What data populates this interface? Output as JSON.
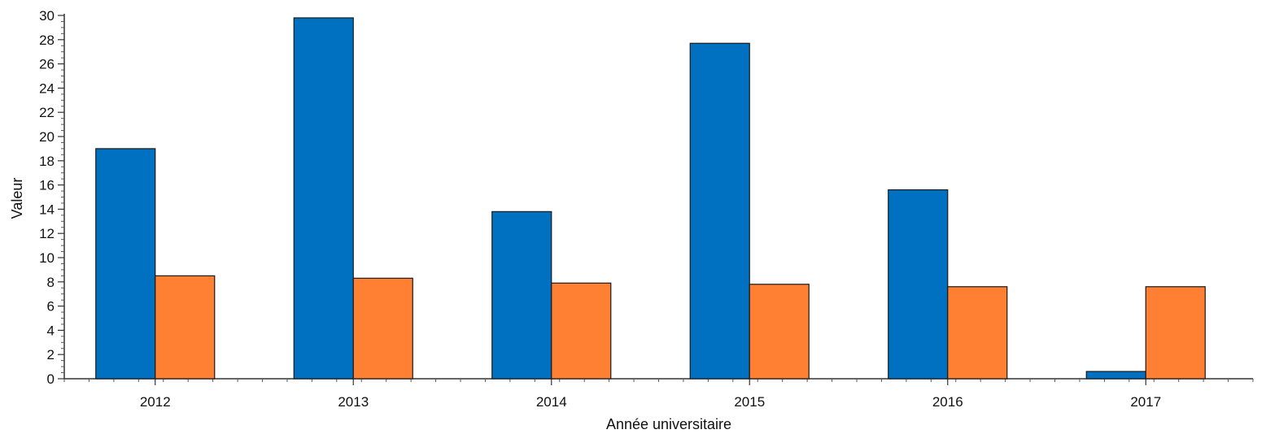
{
  "chart_data": {
    "type": "bar",
    "xlabel": "Année universitaire",
    "ylabel": "Valeur",
    "ylim": [
      0,
      30
    ],
    "y_ticks": [
      "0",
      "2",
      "4",
      "6",
      "8",
      "10",
      "12",
      "14",
      "16",
      "18",
      "20",
      "22",
      "24",
      "26",
      "28",
      "30"
    ],
    "categories": [
      "2012",
      "2013",
      "2014",
      "2015",
      "2016",
      "2017"
    ],
    "series": [
      {
        "color": "#0070c0",
        "values": [
          19.0,
          29.8,
          13.8,
          27.7,
          15.6,
          0.6
        ]
      },
      {
        "color": "#ff7f33",
        "values": [
          8.5,
          8.3,
          7.9,
          7.8,
          7.6,
          7.6
        ]
      }
    ],
    "grid": false,
    "legend": "none"
  }
}
